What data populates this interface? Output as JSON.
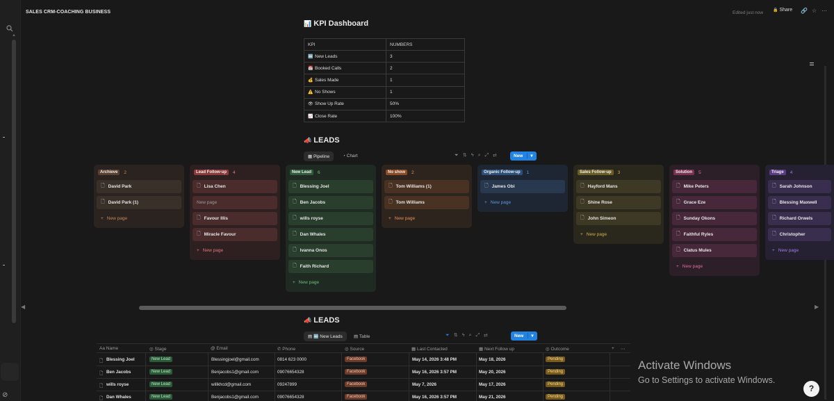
{
  "topbar": {
    "workspace_title": "SALES CRM-COACHING BUSINESS",
    "edited": "Edited just now",
    "share": "Share"
  },
  "kpi": {
    "title": "KPI Dashboard",
    "title_icon": "bar-chart-emoji",
    "header": [
      "KPI",
      "NUMBERS"
    ],
    "rows": [
      {
        "icon": "new-button-emoji",
        "label": "New Leads",
        "value": "3"
      },
      {
        "icon": "calendar-emoji",
        "label": "Booked Calls",
        "value": "2"
      },
      {
        "icon": "money-bag-emoji",
        "label": "Sales Made",
        "value": "1"
      },
      {
        "icon": "warning-emoji",
        "label": "No Shows",
        "value": "1"
      },
      {
        "icon": "eye-emoji",
        "label": "Show Up Rate",
        "value": "50%"
      },
      {
        "icon": "chart-emoji",
        "label": "Close Rate",
        "value": "100%"
      }
    ]
  },
  "board": {
    "title": "LEADS",
    "title_icon": "megaphone-emoji",
    "tabs": [
      "Pipeline",
      "Chart"
    ],
    "new_label": "New",
    "new_page_label": "New page",
    "columns": [
      {
        "name": "Archieve",
        "count": "2",
        "tag_color": "#5a3f2e",
        "bg": "#2a2320",
        "card_bg": "#3a302a",
        "accent": "#c58a5a",
        "cards": [
          "David Park",
          "David Park (1)"
        ]
      },
      {
        "name": "Lead Follow-up",
        "count": "4",
        "tag_color": "#8b3a3a",
        "bg": "#2e2020",
        "card_bg": "#4a2c2c",
        "accent": "#e07a7a",
        "cards": [
          "Lisa Chen",
          "",
          "Favour Illis",
          "Miracle  Favour"
        ]
      },
      {
        "name": "New Lead",
        "count": "6",
        "tag_color": "#2e5a3a",
        "bg": "#1f2a22",
        "card_bg": "#2a3e2e",
        "accent": "#6fbf7e",
        "cards": [
          "Blessing Joel",
          "Ben Jacobs",
          "wills royse",
          "Dan Whales",
          "Ivanna Onos",
          "Faith Richard"
        ]
      },
      {
        "name": "No show",
        "count": "2",
        "tag_color": "#8a4a25",
        "bg": "#2e241e",
        "card_bg": "#4a3222",
        "accent": "#e0905a",
        "cards": [
          "Tom Williams (1)",
          "Tom Williams"
        ]
      },
      {
        "name": "Organic Follow-up",
        "count": "1",
        "tag_color": "#2b4f78",
        "bg": "#1e2633",
        "card_bg": "#28384e",
        "accent": "#5a9be0",
        "cards": [
          "James Obi"
        ]
      },
      {
        "name": "Sales Follow-up",
        "count": "3",
        "tag_color": "#6a5a25",
        "bg": "#2a271c",
        "card_bg": "#3e3924",
        "accent": "#d4b04a",
        "cards": [
          "Hayford Mans",
          "Shine Rose",
          "John  Simeon"
        ]
      },
      {
        "name": "Solution",
        "count": "5",
        "tag_color": "#7a3050",
        "bg": "#2c1f27",
        "card_bg": "#46283a",
        "accent": "#e06aa0",
        "cards": [
          "Mike Peters",
          "Grace Eze",
          "Sunday Okons",
          "Faithful Ryles",
          "Clatus Mules"
        ]
      },
      {
        "name": "Triage",
        "count": "4",
        "tag_color": "#5a3a80",
        "bg": "#262033",
        "card_bg": "#3a2e4e",
        "accent": "#a67ae0",
        "cards": [
          "Sarah Johnson",
          "Blessing Maxwell",
          "Richard Orwels",
          "Christopher"
        ]
      }
    ]
  },
  "table": {
    "title": "LEADS",
    "title_icon": "megaphone-emoji",
    "tabs": [
      "New Leads",
      "Table"
    ],
    "new_label": "New",
    "columns": [
      "Name",
      "Stage",
      "Email",
      "Phone",
      "Source",
      "Last Contacted",
      "Next Follow up",
      "Outcome"
    ],
    "rows": [
      {
        "name": "Blessing Joel",
        "stage": "New Lead",
        "email": "Blessingjoel@gmail.com",
        "phone": "0814 623 0000",
        "source": "Facebook",
        "last": "May 14, 2026 3:48 PM",
        "next": "May 18, 2026",
        "outcome": "Pending"
      },
      {
        "name": "Ben Jacobs",
        "stage": "New Lead",
        "email": "Benjacobs1@gmail.com",
        "phone": "09076654328",
        "source": "Facebook",
        "last": "May 16, 2026 3:57 PM",
        "next": "May 20, 2026",
        "outcome": "Pending"
      },
      {
        "name": "wills royse",
        "stage": "New Lead",
        "email": "willkhcd@gmail.com",
        "phone": "09247899",
        "source": "Facebook",
        "last": "May 7, 2026",
        "next": "May 17, 2026",
        "outcome": "Pending"
      },
      {
        "name": "Dan Whales",
        "stage": "New Lead",
        "email": "Benjacobs1@gmail.com",
        "phone": "09076654328",
        "source": "Facebook",
        "last": "May 16, 2026 3:57 PM",
        "next": "May 21, 2026",
        "outcome": "Pending"
      }
    ]
  },
  "windows_overlay": {
    "line1": "Activate Windows",
    "line2": "Go to Settings to activate Windows."
  },
  "colors": {
    "accent": "#2383e2",
    "background": "#191919"
  }
}
